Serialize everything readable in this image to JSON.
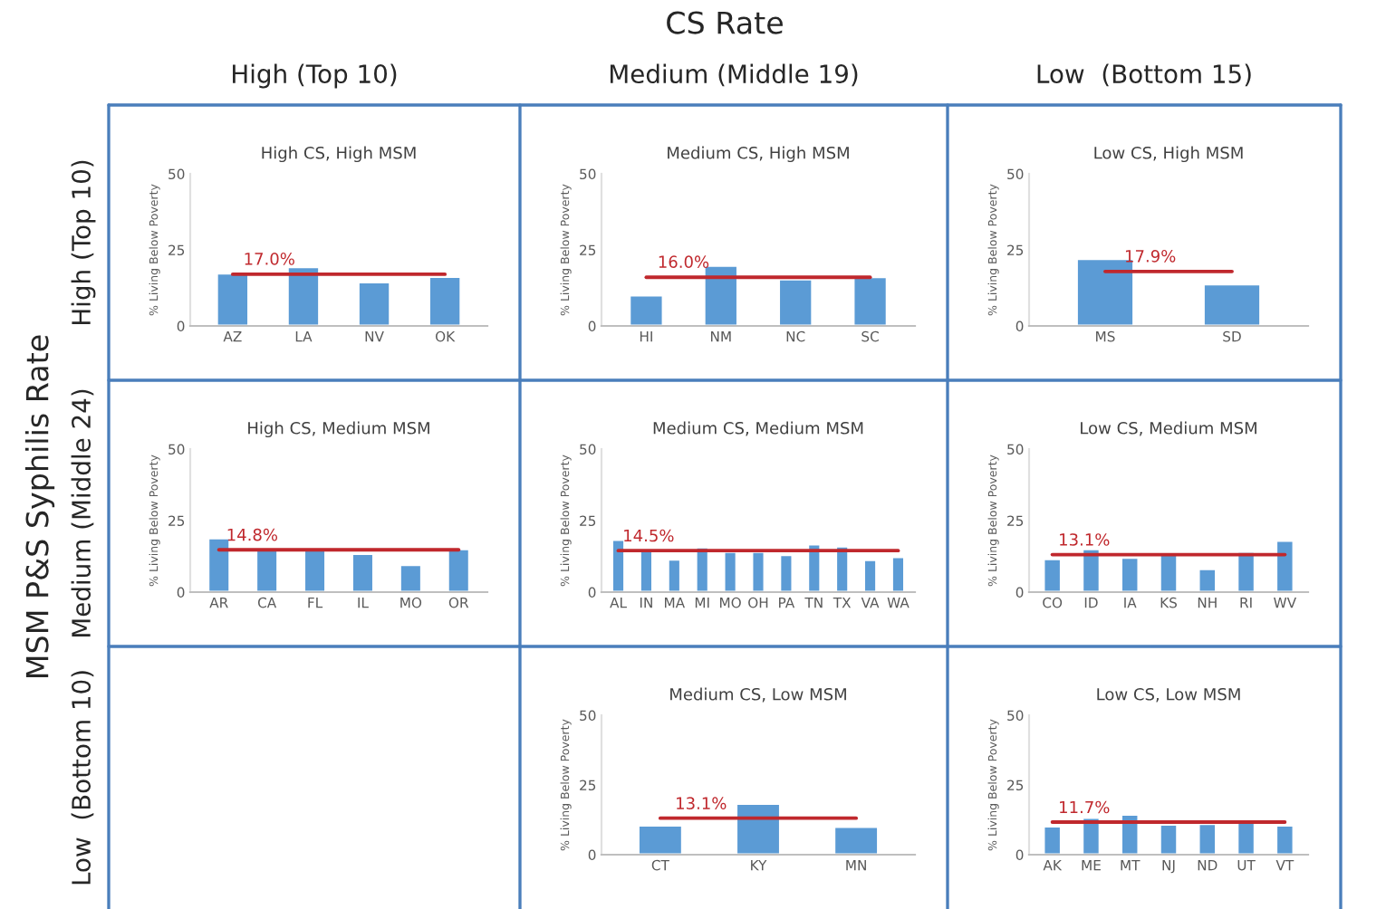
{
  "chart_data": [
    {
      "type": "bar",
      "title": "High CS, High MSM",
      "ylabel": "% Living Below Poverty",
      "categories": [
        "AZ",
        "LA",
        "NV",
        "OK"
      ],
      "values": [
        17.3,
        19.4,
        14.4,
        16.2
      ],
      "color": "#5b9bd5",
      "ylim": [
        0,
        50
      ],
      "yticks": [
        0,
        25,
        50
      ],
      "ref_lines": [
        {
          "axis": "y",
          "value": 17.0,
          "label": "17.0%",
          "color": "#c0282d"
        }
      ]
    },
    {
      "type": "bar",
      "title": "Medium CS, High MSM",
      "ylabel": "% Living Below Poverty",
      "categories": [
        "HI",
        "NM",
        "NC",
        "SC"
      ],
      "values": [
        10.1,
        19.8,
        15.4,
        16.1
      ],
      "color": "#5b9bd5",
      "ylim": [
        0,
        50
      ],
      "yticks": [
        0,
        25,
        50
      ],
      "ref_lines": [
        {
          "axis": "y",
          "value": 16.0,
          "label": "16.0%",
          "color": "#c0282d"
        }
      ]
    },
    {
      "type": "bar",
      "title": "Low CS, High MSM",
      "ylabel": "% Living Below Poverty",
      "categories": [
        "MS",
        "SD"
      ],
      "values": [
        22.1,
        13.7
      ],
      "color": "#5b9bd5",
      "ylim": [
        0,
        50
      ],
      "yticks": [
        0,
        25,
        50
      ],
      "ref_lines": [
        {
          "axis": "y",
          "value": 17.9,
          "label": "17.9%",
          "color": "#c0282d"
        }
      ]
    },
    {
      "type": "bar",
      "title": "High CS, Medium MSM",
      "ylabel": "% Living Below Poverty",
      "categories": [
        "AR",
        "CA",
        "FL",
        "IL",
        "MO",
        "OR"
      ],
      "values": [
        18.9,
        15.1,
        15.6,
        13.4,
        9.5,
        15.1
      ],
      "color": "#5b9bd5",
      "ylim": [
        0,
        50
      ],
      "yticks": [
        0,
        25,
        50
      ],
      "ref_lines": [
        {
          "axis": "y",
          "value": 14.8,
          "label": "14.8%",
          "color": "#c0282d"
        }
      ]
    },
    {
      "type": "bar",
      "title": "Medium CS, Medium MSM",
      "ylabel": "% Living Below Poverty",
      "categories": [
        "AL",
        "IN",
        "MA",
        "MI",
        "MO",
        "OH",
        "PA",
        "TN",
        "TX",
        "VA",
        "WA"
      ],
      "values": [
        18.3,
        14.4,
        11.4,
        15.7,
        14.1,
        14.1,
        13.0,
        16.7,
        16.0,
        11.3,
        12.3
      ],
      "color": "#5b9bd5",
      "ylim": [
        0,
        50
      ],
      "yticks": [
        0,
        25,
        50
      ],
      "ref_lines": [
        {
          "axis": "y",
          "value": 14.5,
          "label": "14.5%",
          "color": "#c0282d"
        }
      ]
    },
    {
      "type": "bar",
      "title": "Low CS, Medium MSM",
      "ylabel": "% Living Below Poverty",
      "categories": [
        "CO",
        "ID",
        "IA",
        "KS",
        "NH",
        "RI",
        "WV"
      ],
      "values": [
        11.6,
        15.1,
        12.1,
        13.2,
        8.1,
        14.1,
        18.0
      ],
      "color": "#5b9bd5",
      "ylim": [
        0,
        50
      ],
      "yticks": [
        0,
        25,
        50
      ],
      "ref_lines": [
        {
          "axis": "y",
          "value": 13.1,
          "label": "13.1%",
          "color": "#c0282d"
        }
      ]
    },
    {
      "type": "bar",
      "title": "Medium CS, Low MSM",
      "ylabel": "% Living Below Poverty",
      "categories": [
        "CT",
        "KY",
        "MN"
      ],
      "values": [
        10.5,
        18.3,
        10.0
      ],
      "color": "#5b9bd5",
      "ylim": [
        0,
        50
      ],
      "yticks": [
        0,
        25,
        50
      ],
      "ref_lines": [
        {
          "axis": "y",
          "value": 13.1,
          "label": "13.1%",
          "color": "#c0282d"
        }
      ]
    },
    {
      "type": "bar",
      "title": "Low CS, Low MSM",
      "ylabel": "% Living Below Poverty",
      "categories": [
        "AK",
        "ME",
        "MT",
        "NJ",
        "ND",
        "UT",
        "VT"
      ],
      "values": [
        10.2,
        13.3,
        14.4,
        10.8,
        11.1,
        11.5,
        10.5
      ],
      "color": "#5b9bd5",
      "ylim": [
        0,
        50
      ],
      "yticks": [
        0,
        25,
        50
      ],
      "ref_lines": [
        {
          "axis": "y",
          "value": 11.7,
          "label": "11.7%",
          "color": "#c0282d"
        }
      ]
    },
    {
      "type": "other",
      "title": "CS Rate",
      "ylabel": "MSM P&S Syphilis Rate",
      "annotations": [
        "High (Top 10)",
        "Medium (Middle 19)",
        "Low  (Bottom 15)",
        "High (Top 10)",
        "Medium (Middle 24)",
        "Low  (Bottom 10)"
      ]
    }
  ]
}
